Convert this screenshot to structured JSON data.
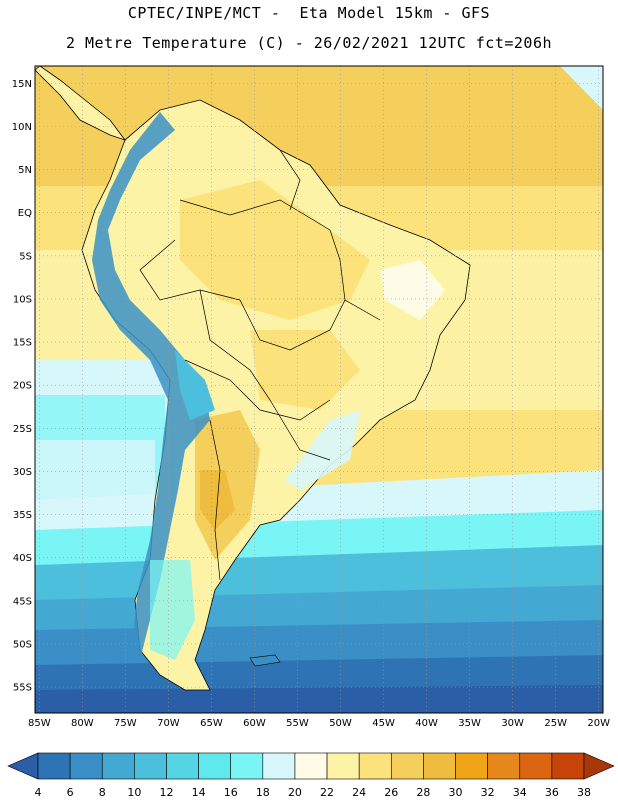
{
  "header": {
    "line1": "CPTEC/INPE/MCT -  Eta Model 15km - GFS",
    "line2": "2 Metre Temperature (C) - 26/02/2021 12UTC fct=206h"
  },
  "map": {
    "lat_labels": [
      "15N",
      "10N",
      "5N",
      "EQ",
      "5S",
      "10S",
      "15S",
      "20S",
      "25S",
      "30S",
      "35S",
      "40S",
      "45S",
      "50S",
      "55S"
    ],
    "lon_labels": [
      "85W",
      "80W",
      "75W",
      "70W",
      "65W",
      "60W",
      "55W",
      "50W",
      "45W",
      "40W",
      "35W",
      "30W",
      "25W",
      "20W"
    ],
    "lat_range": [
      17,
      -58
    ],
    "lon_range": [
      -85.5,
      -19.5
    ]
  },
  "colorbar": {
    "labels": [
      "4",
      "6",
      "8",
      "10",
      "12",
      "14",
      "16",
      "18",
      "20",
      "22",
      "24",
      "26",
      "28",
      "30",
      "32",
      "34",
      "36",
      "38"
    ],
    "colors": [
      "#2a5ea6",
      "#2e74b5",
      "#3a90c6",
      "#43a9d2",
      "#4cbfdc",
      "#55d5e3",
      "#5fe9ec",
      "#79f5f5",
      "#d8f7fa",
      "#fefbe6",
      "#fdf3a7",
      "#fbe27b",
      "#f5cf5c",
      "#eebc3e",
      "#f0a519",
      "#e6881c",
      "#dc6512",
      "#c64408",
      "#a8380a"
    ]
  }
}
